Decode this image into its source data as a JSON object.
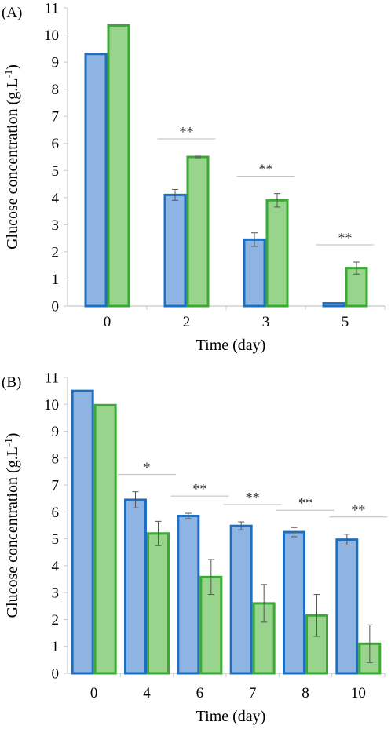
{
  "chart_data": [
    {
      "type": "bar",
      "panel_label": "(A)",
      "categories": [
        "0",
        "2",
        "3",
        "5"
      ],
      "series": [
        {
          "values": [
            9.3,
            4.1,
            2.45,
            0.1
          ],
          "errors": [
            0,
            0.2,
            0.25,
            0
          ],
          "color": "#8eb4e3",
          "edge": "#1f6fc0"
        },
        {
          "values": [
            10.35,
            5.5,
            3.9,
            1.4
          ],
          "errors": [
            0,
            0.03,
            0.25,
            0.22
          ],
          "color": "#98d48c",
          "edge": "#3aaa35"
        }
      ],
      "significance": [
        "",
        "**",
        "**",
        "**"
      ],
      "xlabel": "Time (day)",
      "ylabel": "Glucose concentration (g.L",
      "ylabel_sup": "-1",
      "ylabel_end": ")",
      "ylim": [
        0,
        11
      ],
      "yticks": [
        0,
        1,
        2,
        3,
        4,
        5,
        6,
        7,
        8,
        9,
        10,
        11
      ],
      "grid": false,
      "legend": "none"
    },
    {
      "type": "bar",
      "panel_label": "(B)",
      "categories": [
        "0",
        "4",
        "6",
        "7",
        "8",
        "10"
      ],
      "series": [
        {
          "values": [
            10.5,
            6.45,
            5.85,
            5.48,
            5.25,
            4.97
          ],
          "errors": [
            0,
            0.3,
            0.1,
            0.15,
            0.17,
            0.2
          ],
          "color": "#8eb4e3",
          "edge": "#1f6fc0"
        },
        {
          "values": [
            9.97,
            5.2,
            3.58,
            2.6,
            2.15,
            1.1
          ],
          "errors": [
            0,
            0.45,
            0.65,
            0.7,
            0.78,
            0.7
          ],
          "color": "#98d48c",
          "edge": "#3aaa35"
        }
      ],
      "significance": [
        "",
        "*",
        "**",
        "**",
        "**",
        "**"
      ],
      "xlabel": "Time (day)",
      "ylabel": "Glucose concentration (g.L",
      "ylabel_sup": "-1",
      "ylabel_end": ")",
      "ylim": [
        0,
        11
      ],
      "yticks": [
        0,
        1,
        2,
        3,
        4,
        5,
        6,
        7,
        8,
        9,
        10,
        11
      ],
      "grid": false,
      "legend": "none"
    }
  ]
}
